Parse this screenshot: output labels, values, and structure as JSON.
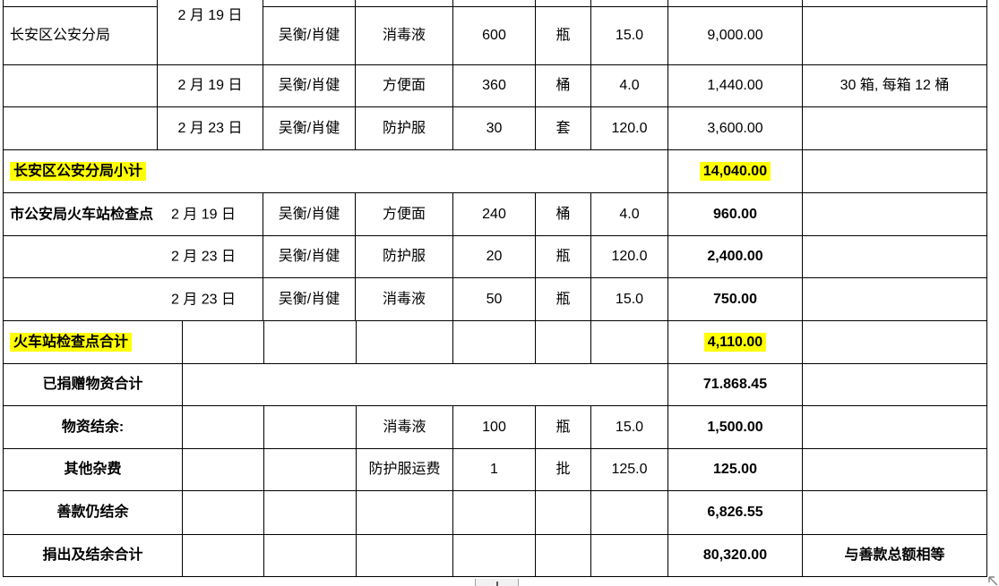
{
  "page": {
    "background": "#ffffff"
  },
  "colors": {
    "highlight": "#ffff00",
    "grid": "#000000",
    "handle_gray": "#808080"
  },
  "table": {
    "rows": [
      {
        "type": "detail_a",
        "org": "长安区公安分局",
        "date": "2 月 19 日",
        "handler": "吴衡/肖健",
        "item": "消毒液",
        "qty": "600",
        "unit": "瓶",
        "price": "15.0",
        "amount": "9,000.00",
        "note": ""
      },
      {
        "type": "detail_a",
        "org": "",
        "date": "2 月 19 日",
        "handler": "吴衡/肖健",
        "item": "方便面",
        "qty": "360",
        "unit": "桶",
        "price": "4.0",
        "amount": "1,440.00",
        "note": "30 箱, 每箱 12 桶"
      },
      {
        "type": "detail_a",
        "org": "",
        "date": "2 月 23 日",
        "handler": "吴衡/肖健",
        "item": "防护服",
        "qty": "30",
        "unit": "套",
        "price": "120.0",
        "amount": "3,600.00",
        "note": ""
      },
      {
        "type": "subtotal",
        "label": "长安区公安分局小计",
        "amount": "14,040.00",
        "note": ""
      },
      {
        "type": "detail_b",
        "org": "市公安局火车站检查点",
        "date": "2 月 19 日",
        "handler": "吴衡/肖健",
        "item": "方便面",
        "qty": "240",
        "unit": "桶",
        "price": "4.0",
        "amount": "960.00",
        "note": ""
      },
      {
        "type": "detail_b",
        "org": "",
        "date": "2 月 23 日",
        "handler": "吴衡/肖健",
        "item": "防护服",
        "qty": "20",
        "unit": "瓶",
        "price": "120.0",
        "amount": "2,400.00",
        "note": ""
      },
      {
        "type": "detail_b",
        "org": "",
        "date": "2 月 23 日",
        "handler": "吴衡/肖健",
        "item": "消毒液",
        "qty": "50",
        "unit": "瓶",
        "price": "15.0",
        "amount": "750.00",
        "note": ""
      },
      {
        "type": "total",
        "label": "火车站检查点合计",
        "amount": "4,110.00",
        "note": ""
      },
      {
        "type": "grand",
        "label": "已捐赠物资合计",
        "amount": "71.868.45",
        "note": ""
      },
      {
        "type": "summary",
        "label": "物资结余:",
        "item": "消毒液",
        "qty": "100",
        "unit": "瓶",
        "price": "15.0",
        "amount": "1,500.00",
        "note": ""
      },
      {
        "type": "summary",
        "label": "其他杂费",
        "item": "防护服运费",
        "qty": "1",
        "unit": "批",
        "price": "125.0",
        "amount": "125.00",
        "note": ""
      },
      {
        "type": "summary",
        "label": "善款仍结余",
        "item": "",
        "qty": "",
        "unit": "",
        "price": "",
        "amount": "6,826.55",
        "note": ""
      },
      {
        "type": "summary",
        "label": "捐出及结余合计",
        "item": "",
        "qty": "",
        "unit": "",
        "price": "",
        "amount": "80,320.00",
        "note": "与善款总额相等"
      }
    ]
  }
}
